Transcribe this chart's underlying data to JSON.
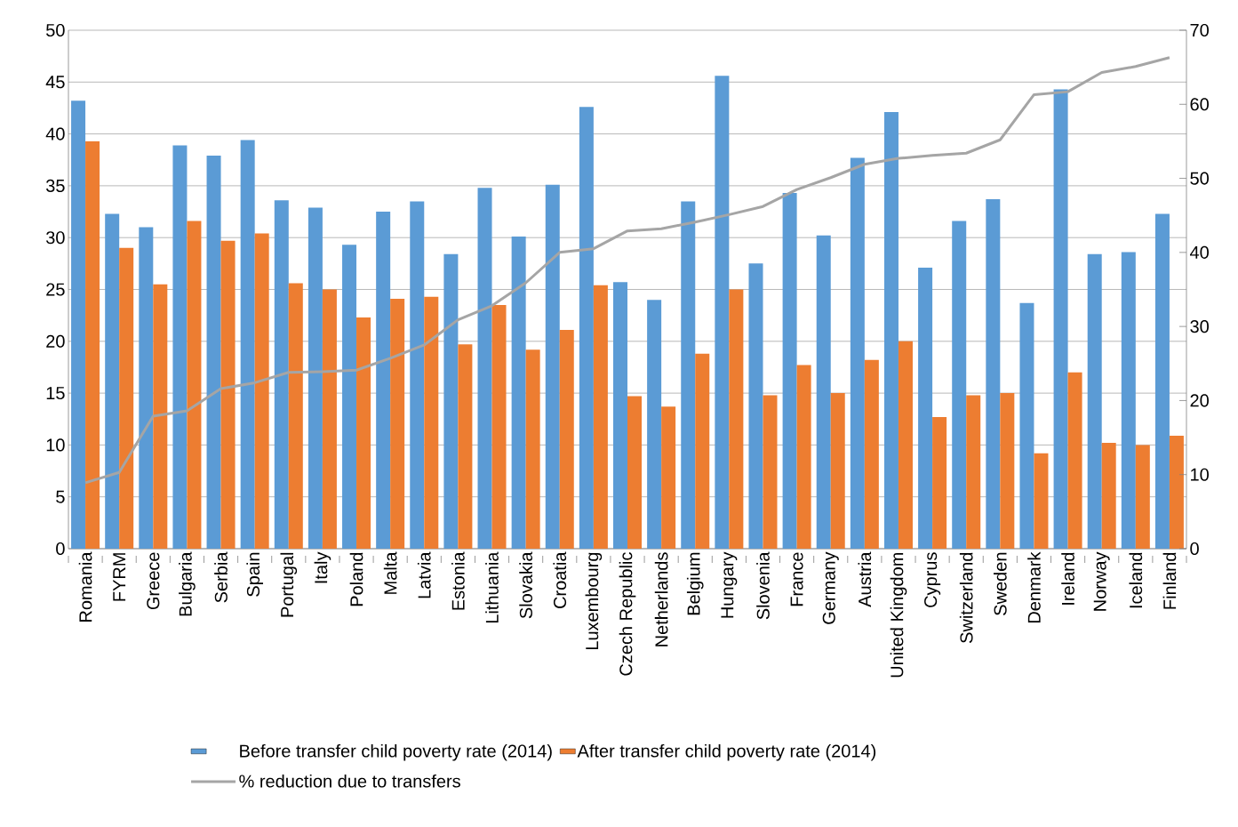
{
  "chart_data": {
    "type": "bar",
    "categories": [
      "Romania",
      "FYRM",
      "Greece",
      "Bulgaria",
      "Serbia",
      "Spain",
      "Portugal",
      "Italy",
      "Poland",
      "Malta",
      "Latvia",
      "Estonia",
      "Lithuania",
      "Slovakia",
      "Croatia",
      "Luxembourg",
      "Czech Republic",
      "Netherlands",
      "Belgium",
      "Hungary",
      "Slovenia",
      "France",
      "Germany",
      "Austria",
      "United Kingdom",
      "Cyprus",
      "Switzerland",
      "Sweden",
      "Denmark",
      "Ireland",
      "Norway",
      "Iceland",
      "Finland"
    ],
    "series": [
      {
        "name": "Before transfer child poverty rate (2014)",
        "color": "#5b9bd5",
        "values": [
          43.2,
          32.3,
          31.0,
          38.9,
          37.9,
          39.4,
          33.6,
          32.9,
          29.3,
          32.5,
          33.5,
          28.4,
          34.8,
          30.1,
          35.1,
          42.6,
          25.7,
          24.0,
          33.5,
          45.6,
          27.5,
          34.3,
          30.2,
          37.7,
          42.1,
          27.1,
          31.6,
          33.7,
          23.7,
          44.3,
          28.4,
          28.6,
          32.3
        ]
      },
      {
        "name": "After transfer child poverty rate (2014)",
        "color": "#ed7d31",
        "values": [
          39.3,
          29.0,
          25.5,
          31.6,
          29.7,
          30.4,
          25.6,
          25.0,
          22.3,
          24.1,
          24.3,
          19.7,
          23.5,
          19.2,
          21.1,
          25.4,
          14.7,
          13.7,
          18.8,
          25.0,
          14.8,
          17.7,
          15.0,
          18.2,
          20.0,
          12.7,
          14.8,
          15.0,
          9.2,
          17.0,
          10.2,
          10.0,
          10.9
        ]
      },
      {
        "name": "% reduction due to transfers",
        "type": "line",
        "axis": "y2",
        "color": "#a5a5a5",
        "values": [
          8.9,
          10.3,
          17.9,
          18.6,
          21.6,
          22.4,
          23.8,
          23.9,
          24.1,
          25.7,
          27.5,
          30.9,
          32.8,
          35.9,
          40.0,
          40.5,
          42.9,
          43.2,
          44.1,
          45.1,
          46.2,
          48.5,
          50.1,
          51.9,
          52.7,
          53.1,
          53.4,
          55.2,
          61.3,
          61.7,
          64.3,
          65.1,
          66.3
        ]
      }
    ],
    "ylim": [
      0,
      50
    ],
    "yticks": [
      0,
      5,
      10,
      15,
      20,
      25,
      30,
      35,
      40,
      45,
      50
    ],
    "y2lim": [
      0,
      70
    ],
    "y2ticks": [
      0,
      10,
      20,
      30,
      40,
      50,
      60,
      70
    ],
    "grid": "y",
    "legend": "bottom"
  }
}
